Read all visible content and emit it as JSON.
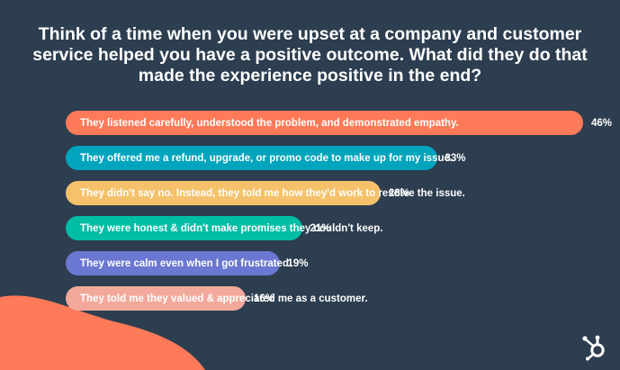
{
  "title_lines": [
    "Think of a time when you were upset at a company and customer",
    "service helped you have a positive outcome. What did they do that",
    "made the experience positive in the end?"
  ],
  "chart_data": {
    "type": "bar",
    "orientation": "horizontal",
    "title": "Think of a time when you were upset at a company and customer service helped you have a positive outcome. What did they do that made the experience positive in the end?",
    "unit": "%",
    "categories": [
      "They listened carefully, understood the problem, and demonstrated empathy.",
      "They offered me a refund, upgrade, or promo code to make up for my issue.",
      "They didn't say no. Instead, they told me how they'd work to resolve the issue.",
      "They were honest & didn't make promises they couldn't keep.",
      "They were calm even when I got frustrated.",
      "They told me they valued & appreciated me as a customer."
    ],
    "values": [
      46,
      33,
      28,
      21,
      19,
      16
    ],
    "value_labels": [
      "46%",
      "33%",
      "28%",
      "21%",
      "19%",
      "16%"
    ],
    "colors": [
      "#ff7a59",
      "#00a4bd",
      "#f5c26b",
      "#00bda5",
      "#6a78d1",
      "#f2a99b"
    ],
    "xlabel": "",
    "ylabel": "",
    "grid": false,
    "legend": "none"
  },
  "colors": {
    "background": "#2d3e50",
    "blob": "#ff7a59",
    "text": "#ffffff"
  },
  "brand": {
    "logo_icon": "hubspot-sprocket-icon"
  }
}
